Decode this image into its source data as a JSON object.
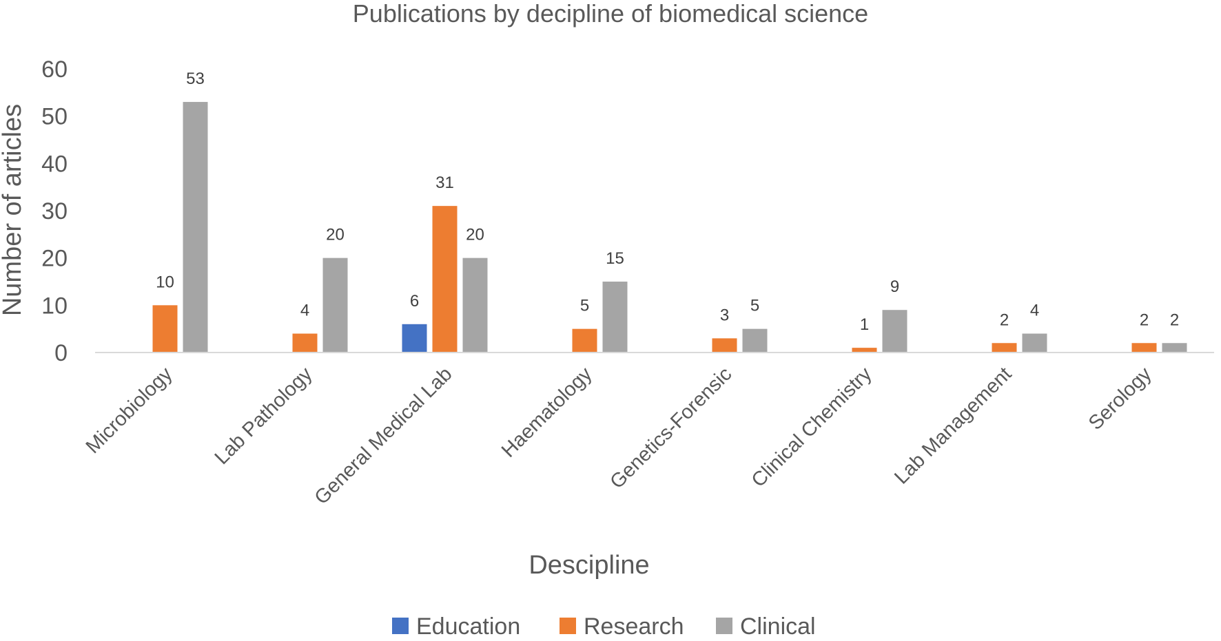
{
  "chart_data": {
    "type": "bar",
    "title": "Publications by decipline of biomedical science",
    "xlabel": "Descipline",
    "ylabel": "Number of articles",
    "ylim": [
      0,
      60
    ],
    "yticks": [
      0,
      10,
      20,
      30,
      40,
      50,
      60
    ],
    "categories": [
      "Microbiology",
      "Lab Pathology",
      "General Medical Lab",
      "Haematology",
      "Genetics-Forensic",
      "Clinical Chemistry",
      "Lab Management",
      "Serology"
    ],
    "series": [
      {
        "name": "Education",
        "color": "#4472C4",
        "values": [
          null,
          null,
          6,
          null,
          null,
          null,
          null,
          null
        ]
      },
      {
        "name": "Research",
        "color": "#ED7D31",
        "values": [
          10,
          4,
          31,
          5,
          3,
          1,
          2,
          2
        ]
      },
      {
        "name": "Clinical",
        "color": "#A5A5A5",
        "values": [
          53,
          20,
          20,
          15,
          5,
          9,
          4,
          2
        ]
      }
    ],
    "grid": false,
    "legend_position": "bottom"
  }
}
